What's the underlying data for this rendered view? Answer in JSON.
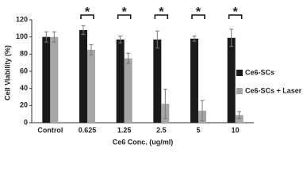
{
  "chart_data": {
    "type": "bar",
    "y_label": "Cell Viability (%)",
    "x_label": "Ce6 Conc. (ug/ml)",
    "categories": [
      "Control",
      "0.625",
      "1.25",
      "2.5",
      "5",
      "10"
    ],
    "series": [
      {
        "name": "Ce6-SCs",
        "color": "#1a1a1a",
        "values": [
          100,
          108,
          97,
          97,
          98,
          99
        ],
        "errors": [
          6,
          5,
          4,
          10,
          3,
          10
        ]
      },
      {
        "name": "Ce6-SCs + Laser",
        "color": "#a6a6a6",
        "values": [
          100,
          85,
          75,
          22,
          14,
          9
        ],
        "errors": [
          6,
          6,
          6,
          17,
          12,
          4
        ]
      }
    ],
    "significance": [
      null,
      "*",
      "*",
      "*",
      "*",
      "*"
    ],
    "ylim": [
      0,
      120
    ],
    "yticks": [
      0,
      20,
      40,
      60,
      80,
      100,
      120
    ],
    "grid": false,
    "legend": "right"
  }
}
